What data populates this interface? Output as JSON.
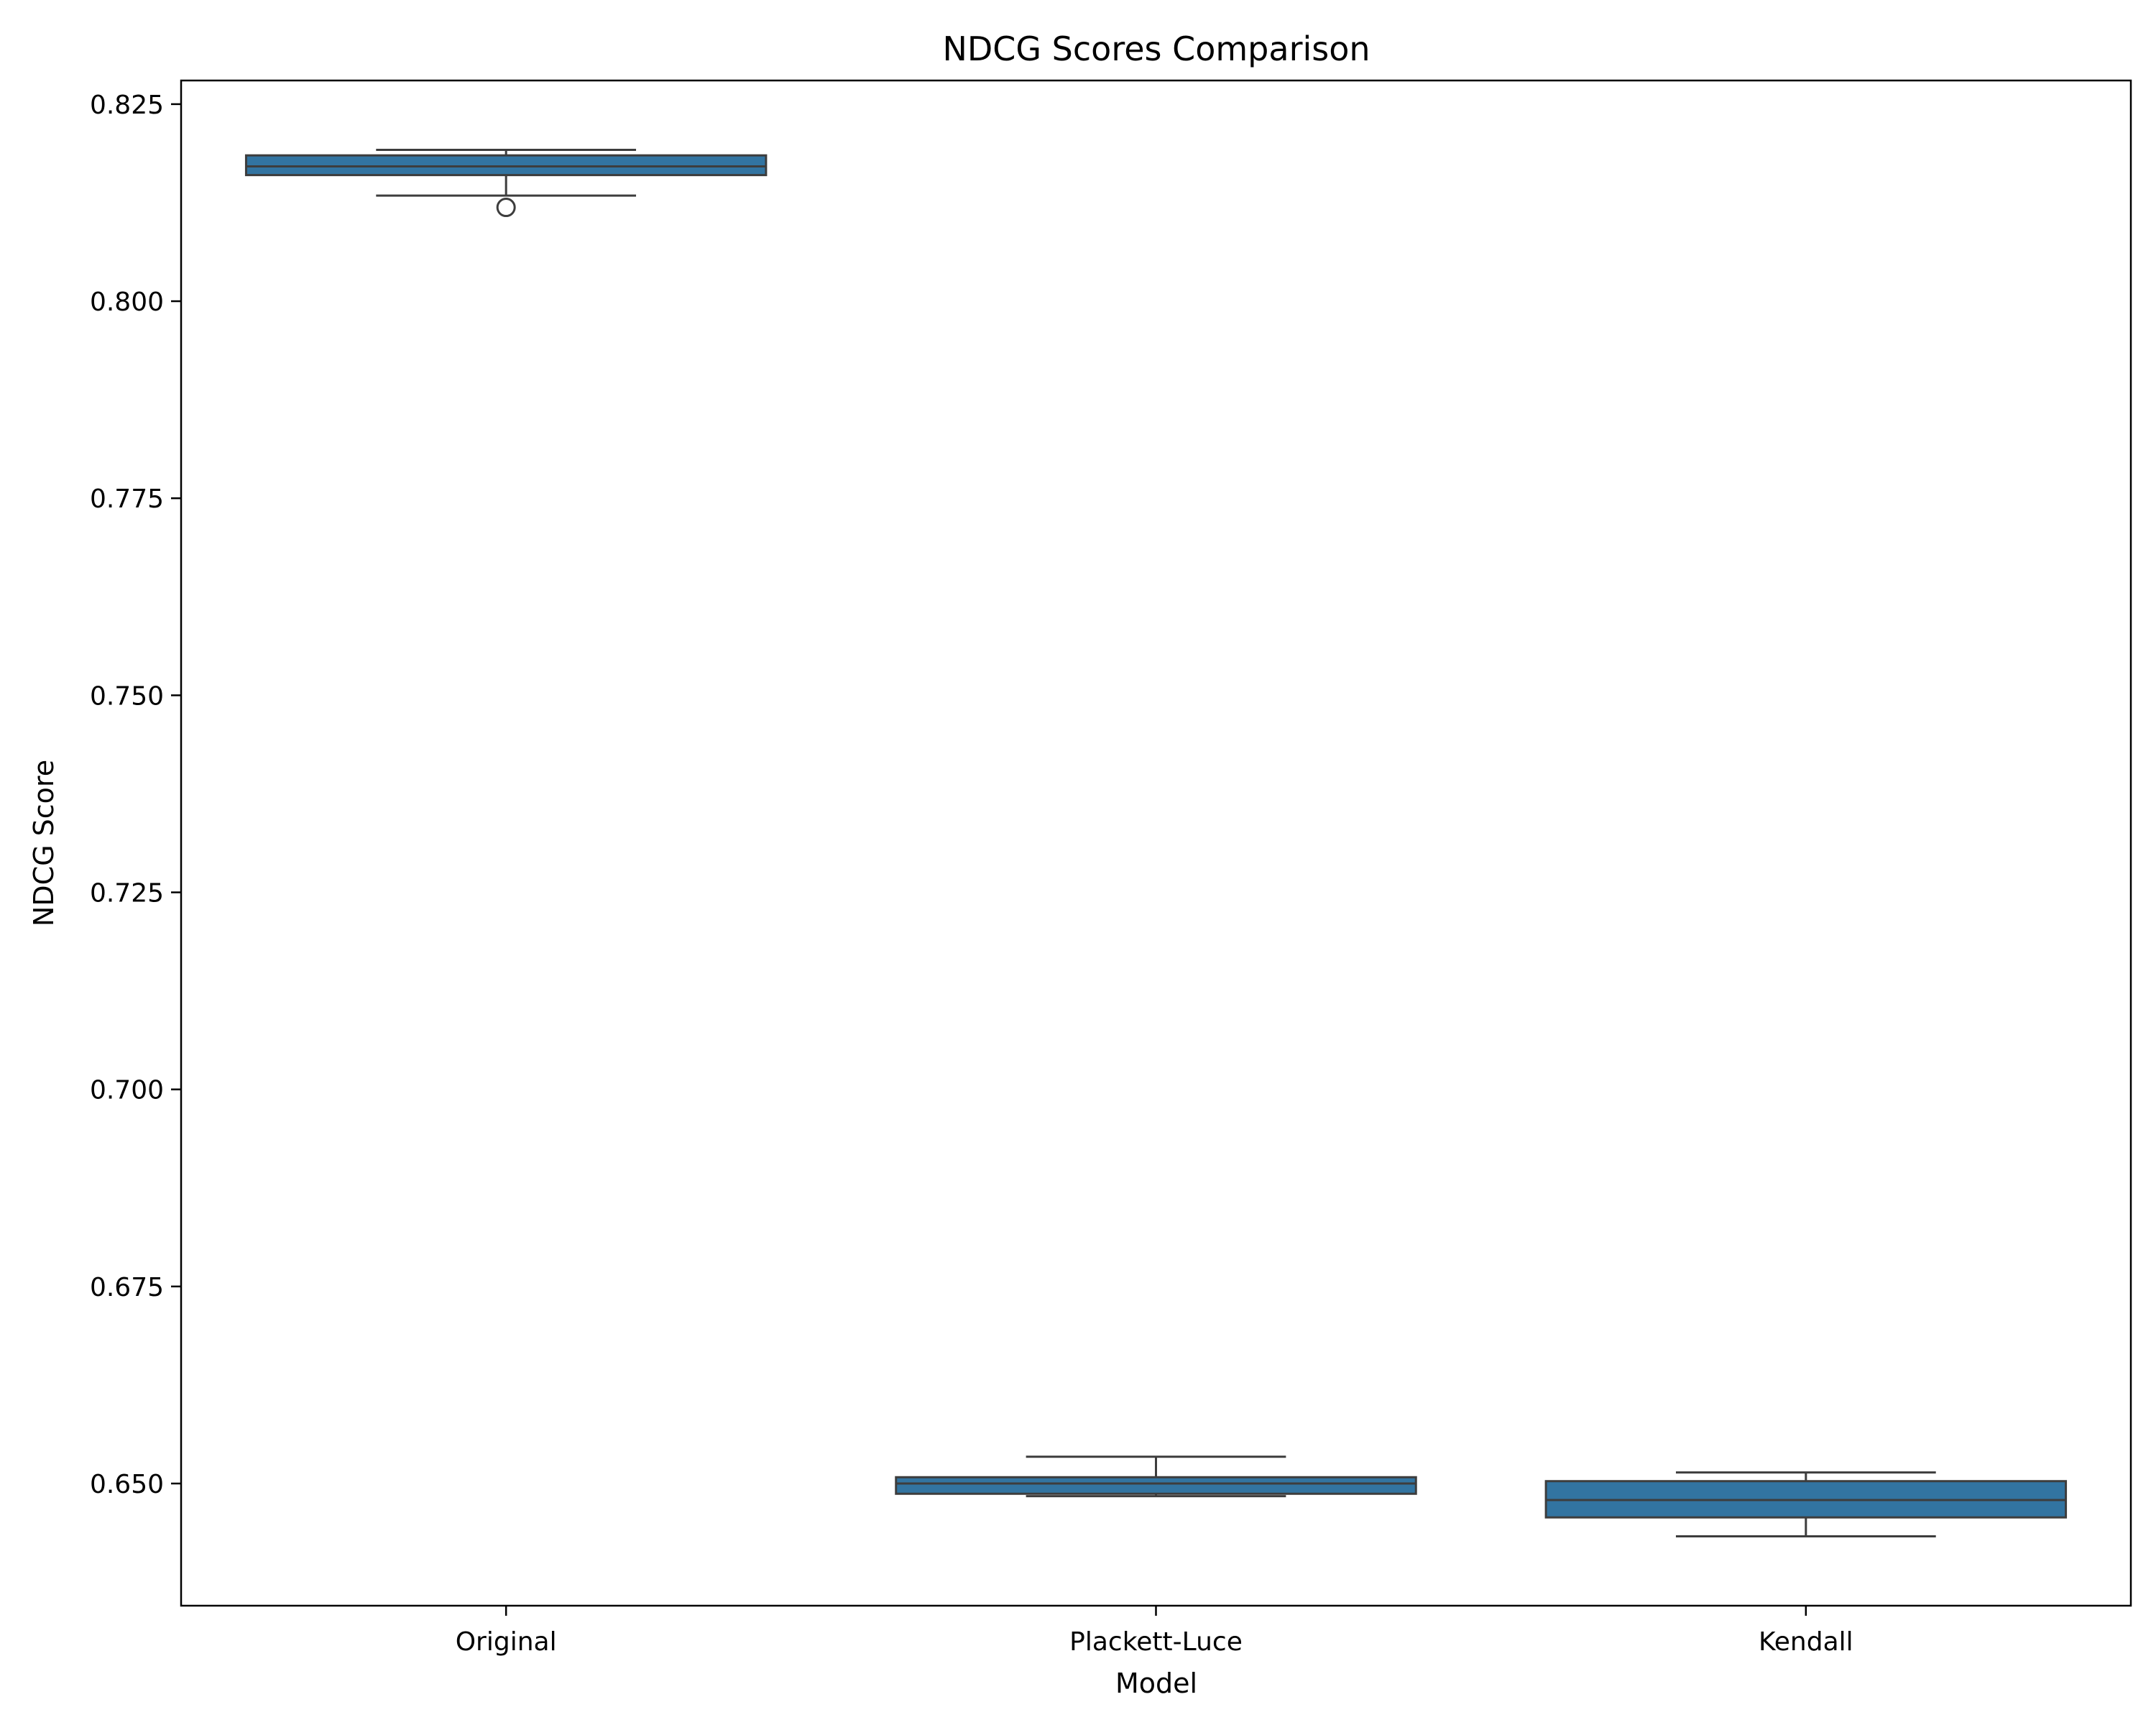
{
  "chart_data": {
    "type": "box",
    "title": "NDCG Scores Comparison",
    "xlabel": "Model",
    "ylabel": "NDCG Score",
    "ylim": [
      0.6345,
      0.828
    ],
    "yticks": [
      "0.650",
      "0.675",
      "0.700",
      "0.725",
      "0.750",
      "0.775",
      "0.800",
      "0.825"
    ],
    "grid": false,
    "categories": [
      "Original",
      "Plackett-Luce",
      "Kendall"
    ],
    "boxes": [
      {
        "category": "Original",
        "whisker_low": 0.8134,
        "q1": 0.816,
        "median": 0.8171,
        "q3": 0.8185,
        "whisker_high": 0.8192,
        "outliers": [
          0.8119
        ]
      },
      {
        "category": "Plackett-Luce",
        "whisker_low": 0.6484,
        "q1": 0.6487,
        "median": 0.65,
        "q3": 0.6508,
        "whisker_high": 0.6534,
        "outliers": []
      },
      {
        "category": "Kendall",
        "whisker_low": 0.6433,
        "q1": 0.6457,
        "median": 0.6479,
        "q3": 0.6503,
        "whisker_high": 0.6514,
        "outliers": []
      }
    ],
    "colors": {
      "box_fill": "#3274a1",
      "box_edge": "#3d3d3d",
      "axis": "#000000"
    }
  }
}
